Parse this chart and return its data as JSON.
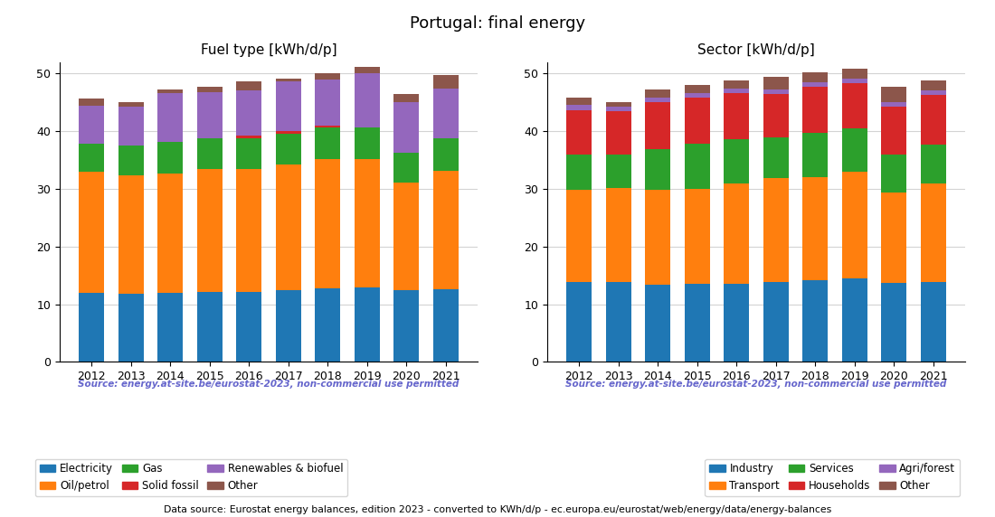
{
  "years": [
    2012,
    2013,
    2014,
    2015,
    2016,
    2017,
    2018,
    2019,
    2020,
    2021
  ],
  "title": "Portugal: final energy",
  "source_text": "Source: energy.at-site.be/eurostat-2023, non-commercial use permitted",
  "bottom_text": "Data source: Eurostat energy balances, edition 2023 - converted to KWh/d/p - ec.europa.eu/eurostat/web/energy/data/energy-balances",
  "fuel_title": "Fuel type [kWh/d/p]",
  "fuel_data": {
    "Electricity": [
      12.0,
      11.8,
      12.0,
      12.2,
      12.2,
      12.4,
      12.8,
      12.9,
      12.4,
      12.6
    ],
    "Oil/petrol": [
      21.0,
      20.6,
      20.7,
      21.3,
      21.3,
      21.8,
      22.3,
      22.3,
      18.7,
      20.5
    ],
    "Gas": [
      4.8,
      5.2,
      5.5,
      5.2,
      5.3,
      5.4,
      5.5,
      5.5,
      5.2,
      5.6
    ],
    "Solid fossil": [
      0.0,
      0.0,
      0.0,
      0.0,
      0.5,
      0.4,
      0.4,
      0.0,
      0.0,
      0.0
    ],
    "Renewables & biofuel": [
      6.6,
      6.7,
      8.4,
      8.0,
      7.8,
      8.7,
      8.0,
      9.4,
      8.7,
      8.7
    ],
    "Other": [
      1.3,
      0.7,
      0.7,
      1.0,
      1.5,
      0.5,
      1.1,
      1.1,
      1.5,
      2.3
    ]
  },
  "fuel_colors": {
    "Electricity": "#1f77b4",
    "Oil/petrol": "#ff7f0e",
    "Gas": "#2ca02c",
    "Solid fossil": "#d62728",
    "Renewables & biofuel": "#9467bd",
    "Other": "#8c564b"
  },
  "sector_title": "Sector [kWh/d/p]",
  "sector_data": {
    "Industry": [
      13.9,
      13.9,
      13.4,
      13.5,
      13.5,
      13.9,
      14.1,
      14.5,
      13.7,
      13.9
    ],
    "Transport": [
      16.0,
      16.2,
      16.5,
      16.5,
      17.5,
      18.0,
      17.9,
      18.4,
      15.7,
      17.0
    ],
    "Services": [
      6.0,
      5.9,
      7.0,
      7.9,
      7.6,
      7.0,
      7.7,
      7.6,
      6.5,
      6.8
    ],
    "Households": [
      7.8,
      7.5,
      8.2,
      7.9,
      8.0,
      7.5,
      8.0,
      7.9,
      8.4,
      8.6
    ],
    "Agri/forest": [
      0.8,
      0.7,
      0.8,
      0.8,
      0.8,
      0.8,
      0.8,
      0.8,
      0.8,
      0.8
    ],
    "Other": [
      1.3,
      0.9,
      1.3,
      1.5,
      1.4,
      2.2,
      1.7,
      1.6,
      2.6,
      1.7
    ]
  },
  "sector_colors": {
    "Industry": "#1f77b4",
    "Transport": "#ff7f0e",
    "Services": "#2ca02c",
    "Households": "#d62728",
    "Agri/forest": "#9467bd",
    "Other": "#8c564b"
  },
  "ylim": [
    0,
    52
  ],
  "yticks": [
    0,
    10,
    20,
    30,
    40,
    50
  ],
  "source_color": "#6666cc",
  "background_color": "#ffffff"
}
